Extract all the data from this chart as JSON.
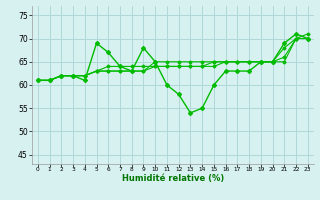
{
  "title": "",
  "xlabel": "Humidité relative (%)",
  "ylabel": "",
  "background_color": "#d7f0f0",
  "grid_color": "#b0d8d8",
  "line_color": "#00bb00",
  "ylim": [
    43,
    77
  ],
  "xlim": [
    -0.5,
    23.5
  ],
  "yticks": [
    45,
    50,
    55,
    60,
    65,
    70,
    75
  ],
  "xticks": [
    0,
    1,
    2,
    3,
    4,
    5,
    6,
    7,
    8,
    9,
    10,
    11,
    12,
    13,
    14,
    15,
    16,
    17,
    18,
    19,
    20,
    21,
    22,
    23
  ],
  "series": [
    [
      61,
      61,
      62,
      62,
      61,
      69,
      67,
      64,
      63,
      68,
      65,
      60,
      58,
      54,
      55,
      60,
      63,
      63,
      63,
      65,
      65,
      69,
      71,
      70
    ],
    [
      61,
      61,
      62,
      62,
      62,
      63,
      64,
      64,
      64,
      64,
      64,
      64,
      64,
      64,
      64,
      64,
      65,
      65,
      65,
      65,
      65,
      66,
      70,
      70
    ],
    [
      61,
      61,
      62,
      62,
      62,
      63,
      63,
      63,
      63,
      63,
      64,
      64,
      64,
      64,
      64,
      65,
      65,
      65,
      65,
      65,
      65,
      65,
      70,
      71
    ],
    [
      61,
      61,
      62,
      62,
      62,
      63,
      63,
      63,
      63,
      63,
      65,
      65,
      65,
      65,
      65,
      65,
      65,
      65,
      65,
      65,
      65,
      68,
      70,
      70
    ]
  ]
}
